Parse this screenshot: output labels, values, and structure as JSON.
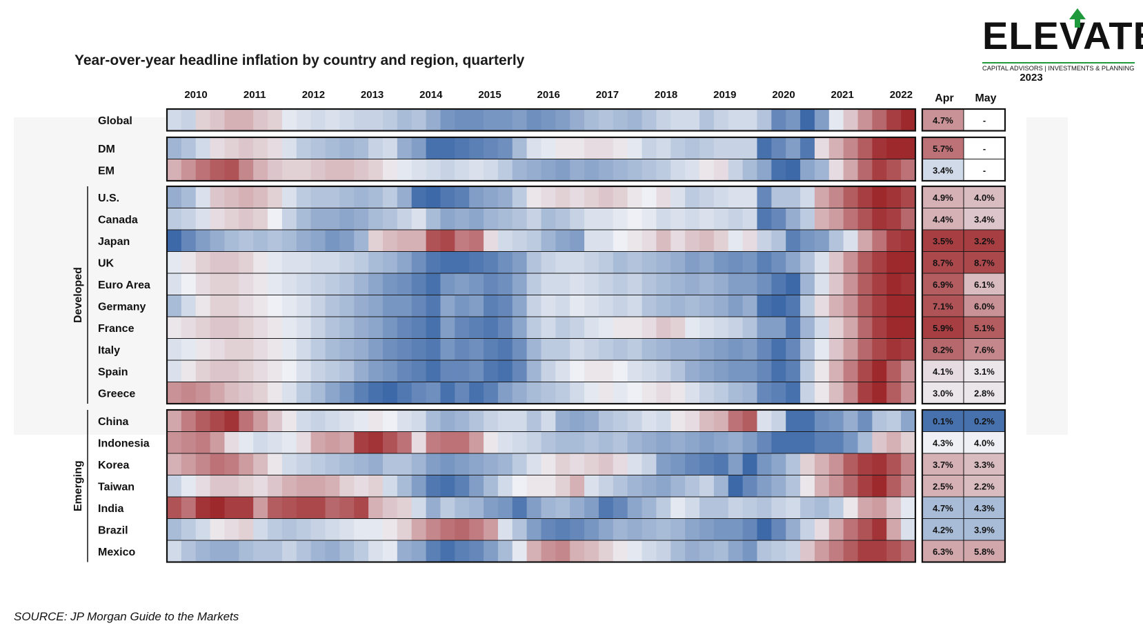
{
  "title": "Year-over-year headline inflation by country and region, quarterly",
  "source": "SOURCE: JP Morgan Guide to the Markets",
  "logo": {
    "name": "ELEVATE",
    "tagline": "CAPITAL ADVISORS | INVESTMENTS & PLANNING",
    "accent": "#1e9a3c"
  },
  "chart_data": {
    "type": "heatmap",
    "x_years": [
      "2010",
      "2011",
      "2012",
      "2013",
      "2014",
      "2015",
      "2016",
      "2017",
      "2018",
      "2019",
      "2020",
      "2021",
      "2022"
    ],
    "quarters_per_row": 52,
    "color_scale": {
      "low": "#2a5aa0",
      "mid": "#eef0f5",
      "high": "#9a1e22"
    },
    "groups": [
      {
        "label": "",
        "rows": [
          "Global"
        ]
      },
      {
        "label": "",
        "rows": [
          "DM",
          "EM"
        ]
      },
      {
        "label": "Developed",
        "rows": [
          "U.S.",
          "Canada",
          "Japan",
          "UK",
          "Euro Area",
          "Germany",
          "France",
          "Italy",
          "Spain",
          "Greece"
        ]
      },
      {
        "label": "Emerging",
        "rows": [
          "China",
          "Indonesia",
          "Korea",
          "Taiwan",
          "India",
          "Brazil",
          "Mexico"
        ]
      }
    ],
    "latest": {
      "year": "2023",
      "columns": [
        "Apr",
        "May"
      ],
      "values": {
        "Global": [
          "4.7%",
          "-"
        ],
        "DM": [
          "5.7%",
          "-"
        ],
        "EM": [
          "3.4%",
          "-"
        ],
        "U.S.": [
          "4.9%",
          "4.0%"
        ],
        "Canada": [
          "4.4%",
          "3.4%"
        ],
        "Japan": [
          "3.5%",
          "3.2%"
        ],
        "UK": [
          "8.7%",
          "8.7%"
        ],
        "Euro Area": [
          "6.9%",
          "6.1%"
        ],
        "Germany": [
          "7.1%",
          "6.0%"
        ],
        "France": [
          "5.9%",
          "5.1%"
        ],
        "Italy": [
          "8.2%",
          "7.6%"
        ],
        "Spain": [
          "4.1%",
          "3.1%"
        ],
        "Greece": [
          "3.0%",
          "2.8%"
        ],
        "China": [
          "0.1%",
          "0.2%"
        ],
        "Indonesia": [
          "4.3%",
          "4.0%"
        ],
        "Korea": [
          "3.7%",
          "3.3%"
        ],
        "Taiwan": [
          "2.5%",
          "2.2%"
        ],
        "India": [
          "4.7%",
          "4.3%"
        ],
        "Brazil": [
          "4.2%",
          "3.9%"
        ],
        "Mexico": [
          "6.3%",
          "5.8%"
        ]
      },
      "cell_intensity": {
        "Global": [
          0.45,
          null
        ],
        "DM": [
          0.6,
          null
        ],
        "EM": [
          -0.15,
          null
        ],
        "U.S.": [
          0.3,
          0.25
        ],
        "Canada": [
          0.3,
          0.2
        ],
        "Japan": [
          0.85,
          0.85
        ],
        "UK": [
          0.8,
          0.8
        ],
        "Euro Area": [
          0.7,
          0.25
        ],
        "Germany": [
          0.75,
          0.45
        ],
        "France": [
          0.85,
          0.7
        ],
        "Italy": [
          0.65,
          0.5
        ],
        "Spain": [
          0.1,
          0.05
        ],
        "Greece": [
          0.05,
          0.05
        ],
        "China": [
          -0.85,
          -0.85
        ],
        "Indonesia": [
          0.0,
          0.0
        ],
        "Korea": [
          0.3,
          0.25
        ],
        "Taiwan": [
          0.3,
          0.25
        ],
        "India": [
          -0.35,
          -0.35
        ],
        "Brazil": [
          -0.35,
          -0.35
        ],
        "Mexico": [
          0.35,
          0.35
        ]
      }
    },
    "intensity": {
      "Global": [
        -0.15,
        -0.2,
        0.15,
        0.2,
        0.3,
        0.3,
        0.2,
        0.15,
        -0.05,
        -0.1,
        -0.15,
        -0.1,
        -0.15,
        -0.2,
        -0.2,
        -0.25,
        -0.35,
        -0.3,
        -0.45,
        -0.6,
        -0.65,
        -0.65,
        -0.6,
        -0.6,
        -0.55,
        -0.65,
        -0.6,
        -0.55,
        -0.45,
        -0.35,
        -0.3,
        -0.35,
        -0.4,
        -0.3,
        -0.2,
        -0.15,
        -0.15,
        -0.3,
        -0.2,
        -0.15,
        -0.15,
        -0.3,
        -0.7,
        -0.6,
        -0.9,
        -0.55,
        -0.05,
        0.2,
        0.45,
        0.65,
        0.85,
        0.95
      ],
      "DM": [
        -0.4,
        -0.3,
        -0.15,
        0.1,
        0.15,
        0.2,
        0.15,
        0.1,
        -0.1,
        -0.25,
        -0.3,
        -0.35,
        -0.4,
        -0.35,
        -0.2,
        -0.15,
        -0.45,
        -0.55,
        -0.85,
        -0.85,
        -0.8,
        -0.75,
        -0.7,
        -0.65,
        -0.35,
        -0.1,
        -0.05,
        0.05,
        0.05,
        0.1,
        0.1,
        0.05,
        -0.05,
        -0.2,
        -0.15,
        -0.25,
        -0.3,
        -0.25,
        -0.2,
        -0.2,
        -0.2,
        -0.85,
        -0.7,
        -0.55,
        -0.8,
        0.1,
        0.3,
        0.5,
        0.7,
        0.9,
        0.95,
        0.95
      ],
      "EM": [
        0.3,
        0.45,
        0.6,
        0.7,
        0.75,
        0.5,
        0.3,
        0.2,
        0.15,
        0.15,
        0.2,
        0.25,
        0.25,
        0.2,
        0.15,
        0.05,
        -0.05,
        -0.1,
        -0.15,
        -0.2,
        -0.15,
        -0.1,
        -0.15,
        -0.25,
        -0.4,
        -0.45,
        -0.5,
        -0.55,
        -0.45,
        -0.5,
        -0.45,
        -0.4,
        -0.35,
        -0.3,
        -0.25,
        -0.15,
        -0.1,
        0.05,
        0.1,
        -0.2,
        -0.35,
        -0.5,
        -0.85,
        -0.9,
        -0.5,
        -0.4,
        0.1,
        0.35,
        0.65,
        0.85,
        0.75,
        0.6
      ],
      "U.S.": [
        -0.45,
        -0.35,
        -0.1,
        0.2,
        0.25,
        0.3,
        0.25,
        0.15,
        -0.1,
        -0.25,
        -0.3,
        -0.3,
        -0.35,
        -0.4,
        -0.35,
        -0.25,
        -0.45,
        -0.85,
        -0.9,
        -0.8,
        -0.75,
        -0.55,
        -0.5,
        -0.45,
        -0.25,
        0.05,
        0.1,
        0.15,
        0.1,
        0.15,
        0.2,
        0.15,
        0.05,
        0.0,
        0.1,
        -0.1,
        -0.25,
        -0.2,
        -0.15,
        -0.1,
        -0.1,
        -0.7,
        -0.3,
        -0.3,
        -0.15,
        0.35,
        0.5,
        0.7,
        0.85,
        0.95,
        0.9,
        0.8
      ],
      "Canada": [
        -0.25,
        -0.2,
        -0.1,
        0.1,
        0.15,
        0.2,
        0.15,
        0.0,
        -0.2,
        -0.35,
        -0.45,
        -0.45,
        -0.5,
        -0.45,
        -0.35,
        -0.3,
        -0.2,
        -0.1,
        -0.35,
        -0.5,
        -0.45,
        -0.5,
        -0.4,
        -0.35,
        -0.3,
        -0.2,
        -0.35,
        -0.3,
        -0.2,
        -0.1,
        -0.1,
        -0.05,
        0.0,
        -0.05,
        -0.15,
        -0.1,
        -0.15,
        -0.1,
        -0.15,
        -0.2,
        -0.15,
        -0.8,
        -0.7,
        -0.45,
        -0.25,
        0.3,
        0.4,
        0.6,
        0.75,
        0.9,
        0.85,
        0.65
      ],
      "Japan": [
        -0.9,
        -0.7,
        -0.55,
        -0.45,
        -0.35,
        -0.3,
        -0.35,
        -0.3,
        -0.35,
        -0.45,
        -0.5,
        -0.6,
        -0.55,
        -0.4,
        0.15,
        0.25,
        0.3,
        0.3,
        0.75,
        0.8,
        0.55,
        0.6,
        0.1,
        -0.15,
        -0.2,
        -0.25,
        -0.4,
        -0.5,
        -0.55,
        -0.1,
        -0.1,
        0.0,
        0.05,
        0.1,
        0.25,
        0.1,
        0.2,
        0.25,
        0.15,
        -0.05,
        0.1,
        -0.2,
        -0.3,
        -0.75,
        -0.6,
        -0.55,
        -0.3,
        -0.1,
        0.35,
        0.6,
        0.85,
        0.9
      ],
      "UK": [
        -0.05,
        0.05,
        0.15,
        0.2,
        0.2,
        0.15,
        0.05,
        -0.05,
        -0.1,
        -0.1,
        -0.15,
        -0.15,
        -0.2,
        -0.25,
        -0.35,
        -0.4,
        -0.5,
        -0.65,
        -0.8,
        -0.85,
        -0.85,
        -0.8,
        -0.75,
        -0.65,
        -0.55,
        -0.3,
        -0.2,
        -0.15,
        -0.15,
        -0.2,
        -0.25,
        -0.35,
        -0.3,
        -0.35,
        -0.4,
        -0.45,
        -0.55,
        -0.5,
        -0.6,
        -0.65,
        -0.6,
        -0.75,
        -0.65,
        -0.5,
        -0.3,
        -0.1,
        0.2,
        0.45,
        0.7,
        0.85,
        0.95,
        0.95
      ],
      "Euro Area": [
        -0.1,
        0.0,
        0.1,
        0.15,
        0.15,
        0.1,
        0.05,
        -0.05,
        -0.1,
        -0.15,
        -0.2,
        -0.25,
        -0.3,
        -0.4,
        -0.5,
        -0.6,
        -0.65,
        -0.75,
        -0.85,
        -0.6,
        -0.55,
        -0.6,
        -0.7,
        -0.65,
        -0.5,
        -0.25,
        -0.15,
        -0.15,
        -0.1,
        -0.15,
        -0.2,
        -0.25,
        -0.2,
        -0.3,
        -0.35,
        -0.4,
        -0.45,
        -0.4,
        -0.45,
        -0.55,
        -0.55,
        -0.65,
        -0.8,
        -0.9,
        -0.4,
        -0.1,
        0.2,
        0.45,
        0.7,
        0.85,
        0.95,
        0.9
      ],
      "Germany": [
        -0.35,
        -0.15,
        0.05,
        0.15,
        0.15,
        0.1,
        0.05,
        0.0,
        -0.05,
        -0.1,
        -0.2,
        -0.3,
        -0.35,
        -0.45,
        -0.5,
        -0.6,
        -0.6,
        -0.7,
        -0.8,
        -0.5,
        -0.6,
        -0.55,
        -0.75,
        -0.7,
        -0.5,
        -0.2,
        -0.1,
        -0.15,
        -0.05,
        -0.1,
        -0.15,
        -0.2,
        -0.15,
        -0.3,
        -0.35,
        -0.4,
        -0.35,
        -0.4,
        -0.45,
        -0.55,
        -0.45,
        -0.85,
        -0.9,
        -0.8,
        -0.25,
        0.1,
        0.3,
        0.45,
        0.7,
        0.85,
        0.95,
        0.95
      ],
      "France": [
        0.05,
        0.1,
        0.15,
        0.2,
        0.2,
        0.15,
        0.1,
        0.05,
        -0.05,
        -0.1,
        -0.2,
        -0.3,
        -0.35,
        -0.45,
        -0.5,
        -0.6,
        -0.7,
        -0.75,
        -0.85,
        -0.55,
        -0.7,
        -0.75,
        -0.8,
        -0.7,
        -0.5,
        -0.25,
        -0.15,
        -0.25,
        -0.2,
        -0.1,
        -0.05,
        0.05,
        0.05,
        0.1,
        0.2,
        0.15,
        -0.05,
        -0.1,
        -0.15,
        -0.2,
        -0.3,
        -0.55,
        -0.55,
        -0.8,
        -0.4,
        -0.15,
        0.15,
        0.35,
        0.65,
        0.85,
        0.95,
        0.95
      ],
      "Italy": [
        -0.1,
        -0.05,
        0.05,
        0.1,
        0.15,
        0.15,
        0.1,
        0.05,
        -0.05,
        -0.15,
        -0.25,
        -0.35,
        -0.4,
        -0.45,
        -0.55,
        -0.65,
        -0.7,
        -0.75,
        -0.8,
        -0.6,
        -0.7,
        -0.65,
        -0.75,
        -0.8,
        -0.65,
        -0.4,
        -0.25,
        -0.25,
        -0.15,
        -0.2,
        -0.25,
        -0.3,
        -0.25,
        -0.35,
        -0.4,
        -0.45,
        -0.45,
        -0.5,
        -0.55,
        -0.6,
        -0.55,
        -0.7,
        -0.85,
        -0.7,
        -0.3,
        -0.05,
        0.2,
        0.4,
        0.65,
        0.8,
        0.9,
        0.85
      ],
      "Spain": [
        -0.1,
        0.05,
        0.15,
        0.2,
        0.2,
        0.15,
        0.1,
        0.05,
        0.0,
        -0.1,
        -0.2,
        -0.25,
        -0.3,
        -0.45,
        -0.55,
        -0.6,
        -0.7,
        -0.75,
        -0.85,
        -0.7,
        -0.7,
        -0.65,
        -0.8,
        -0.85,
        -0.7,
        -0.4,
        -0.2,
        -0.1,
        0.0,
        0.05,
        0.05,
        0.0,
        -0.1,
        -0.15,
        -0.2,
        -0.3,
        -0.45,
        -0.5,
        -0.55,
        -0.6,
        -0.6,
        -0.7,
        -0.85,
        -0.75,
        -0.25,
        0.05,
        0.3,
        0.55,
        0.8,
        0.95,
        0.7,
        0.45
      ],
      "Greece": [
        0.45,
        0.5,
        0.45,
        0.35,
        0.25,
        0.2,
        0.15,
        0.05,
        -0.1,
        -0.25,
        -0.35,
        -0.5,
        -0.6,
        -0.75,
        -0.85,
        -0.9,
        -0.8,
        -0.7,
        -0.65,
        -0.85,
        -0.7,
        -0.85,
        -0.75,
        -0.55,
        -0.45,
        -0.35,
        -0.3,
        -0.25,
        -0.15,
        -0.05,
        0.05,
        -0.05,
        0.0,
        0.05,
        0.1,
        0.05,
        -0.1,
        -0.2,
        -0.25,
        -0.35,
        -0.4,
        -0.7,
        -0.75,
        -0.85,
        -0.2,
        0.05,
        0.25,
        0.5,
        0.85,
        0.95,
        0.7,
        0.45
      ],
      "China": [
        0.35,
        0.55,
        0.7,
        0.8,
        0.9,
        0.6,
        0.4,
        0.2,
        0.05,
        -0.15,
        -0.2,
        -0.15,
        -0.1,
        -0.05,
        0.05,
        0.0,
        -0.1,
        -0.15,
        -0.35,
        -0.45,
        -0.4,
        -0.3,
        -0.2,
        -0.15,
        -0.15,
        -0.3,
        -0.15,
        -0.45,
        -0.5,
        -0.45,
        -0.3,
        -0.25,
        -0.2,
        -0.1,
        -0.15,
        0.05,
        0.1,
        0.25,
        0.3,
        0.6,
        0.7,
        -0.1,
        -0.2,
        -0.85,
        -0.85,
        -0.65,
        -0.6,
        -0.45,
        -0.65,
        -0.3,
        -0.25,
        -0.5
      ],
      "Indonesia": [
        0.45,
        0.5,
        0.55,
        0.4,
        0.1,
        -0.05,
        -0.15,
        -0.1,
        -0.05,
        0.1,
        0.35,
        0.4,
        0.35,
        0.85,
        0.9,
        0.75,
        0.6,
        0.1,
        0.55,
        0.6,
        0.6,
        0.4,
        0.05,
        -0.1,
        -0.15,
        -0.2,
        -0.3,
        -0.35,
        -0.35,
        -0.3,
        -0.35,
        -0.3,
        -0.4,
        -0.45,
        -0.5,
        -0.45,
        -0.5,
        -0.55,
        -0.5,
        -0.45,
        -0.55,
        -0.7,
        -0.85,
        -0.85,
        -0.85,
        -0.75,
        -0.75,
        -0.6,
        -0.35,
        0.2,
        0.3,
        0.15
      ],
      "Korea": [
        0.3,
        0.4,
        0.5,
        0.6,
        0.55,
        0.4,
        0.25,
        0.05,
        -0.15,
        -0.2,
        -0.25,
        -0.3,
        -0.35,
        -0.4,
        -0.45,
        -0.3,
        -0.3,
        -0.4,
        -0.55,
        -0.6,
        -0.55,
        -0.5,
        -0.45,
        -0.4,
        -0.25,
        -0.1,
        0.05,
        0.15,
        0.1,
        0.15,
        0.2,
        0.1,
        -0.1,
        -0.2,
        -0.55,
        -0.6,
        -0.7,
        -0.75,
        -0.8,
        -0.55,
        -0.9,
        -0.6,
        -0.5,
        -0.3,
        0.15,
        0.3,
        0.45,
        0.7,
        0.85,
        0.9,
        0.75,
        0.5
      ],
      "Taiwan": [
        -0.2,
        -0.05,
        0.1,
        0.2,
        0.2,
        0.15,
        0.1,
        0.2,
        0.3,
        0.35,
        0.35,
        0.3,
        0.15,
        0.1,
        0.15,
        -0.15,
        -0.35,
        -0.55,
        -0.8,
        -0.85,
        -0.75,
        -0.55,
        -0.35,
        -0.15,
        0.0,
        0.05,
        0.05,
        0.15,
        0.3,
        -0.1,
        -0.2,
        -0.3,
        -0.4,
        -0.45,
        -0.5,
        -0.4,
        -0.3,
        -0.2,
        -0.4,
        -0.9,
        -0.7,
        -0.55,
        -0.45,
        -0.3,
        0.05,
        0.3,
        0.45,
        0.65,
        0.85,
        0.95,
        0.7,
        0.45
      ],
      "India": [
        0.75,
        0.6,
        0.9,
        0.95,
        0.85,
        0.85,
        0.4,
        0.7,
        0.75,
        0.8,
        0.8,
        0.65,
        0.7,
        0.8,
        0.3,
        0.2,
        0.15,
        -0.15,
        -0.45,
        -0.25,
        -0.35,
        -0.4,
        -0.55,
        -0.6,
        -0.8,
        -0.55,
        -0.4,
        -0.35,
        -0.45,
        -0.55,
        -0.8,
        -0.7,
        -0.5,
        -0.4,
        -0.25,
        -0.05,
        -0.15,
        -0.3,
        -0.3,
        -0.2,
        -0.25,
        -0.3,
        -0.2,
        -0.15,
        -0.3,
        -0.35,
        -0.25,
        0.05,
        0.35,
        0.4,
        0.2,
        -0.05
      ],
      "Brazil": [
        -0.35,
        -0.25,
        -0.15,
        0.05,
        0.1,
        0.15,
        -0.15,
        -0.25,
        -0.3,
        -0.25,
        -0.2,
        -0.15,
        -0.1,
        -0.05,
        -0.05,
        0.05,
        0.15,
        0.35,
        0.5,
        0.6,
        0.65,
        0.55,
        0.4,
        -0.1,
        -0.3,
        -0.55,
        -0.7,
        -0.75,
        -0.7,
        -0.6,
        -0.5,
        -0.4,
        -0.45,
        -0.4,
        -0.35,
        -0.4,
        -0.5,
        -0.55,
        -0.6,
        -0.6,
        -0.7,
        -0.9,
        -0.7,
        -0.45,
        -0.2,
        0.1,
        0.35,
        0.6,
        0.75,
        0.9,
        0.35,
        -0.1
      ],
      "Mexico": [
        -0.15,
        -0.3,
        -0.4,
        -0.45,
        -0.45,
        -0.35,
        -0.3,
        -0.3,
        -0.2,
        -0.3,
        -0.4,
        -0.45,
        -0.35,
        -0.25,
        -0.1,
        -0.05,
        -0.45,
        -0.5,
        -0.75,
        -0.85,
        -0.75,
        -0.7,
        -0.55,
        -0.35,
        -0.05,
        0.3,
        0.45,
        0.5,
        0.3,
        0.25,
        0.15,
        0.05,
        -0.05,
        -0.15,
        -0.2,
        -0.35,
        -0.45,
        -0.4,
        -0.35,
        -0.5,
        -0.6,
        -0.3,
        -0.25,
        -0.2,
        0.2,
        0.4,
        0.55,
        0.7,
        0.85,
        0.85,
        0.75,
        0.6
      ]
    }
  }
}
